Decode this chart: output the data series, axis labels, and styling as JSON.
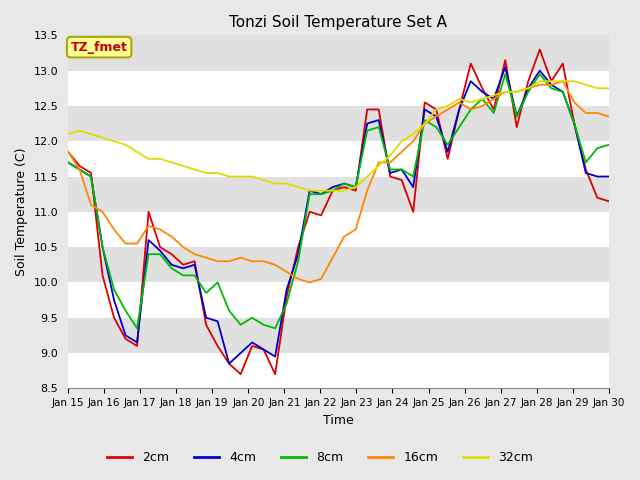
{
  "title": "Tonzi Soil Temperature Set A",
  "xlabel": "Time",
  "ylabel": "Soil Temperature (C)",
  "ylim": [
    8.5,
    13.5
  ],
  "xlim": [
    0,
    15
  ],
  "fig_color": "#e8e8e8",
  "plot_bg_color": "#e0e0e0",
  "grid_color": "#ffffff",
  "colors": {
    "2cm": "#dd0000",
    "4cm": "#0000cc",
    "8cm": "#00bb00",
    "16cm": "#ff8800",
    "32cm": "#dddd00"
  },
  "legend_label": "TZ_fmet",
  "legend_bg": "#ffff99",
  "legend_border": "#aaaa00",
  "x_ticks": [
    "Jan 15",
    "Jan 16",
    "Jan 17",
    "Jan 18",
    "Jan 19",
    "Jan 20",
    "Jan 21",
    "Jan 22",
    "Jan 23",
    "Jan 24",
    "Jan 25",
    "Jan 26",
    "Jan 27",
    "Jan 28",
    "Jan 29",
    "Jan 30"
  ],
  "series_2cm": [
    11.85,
    11.65,
    11.55,
    10.1,
    9.5,
    9.2,
    9.1,
    11.0,
    10.5,
    10.4,
    10.25,
    10.3,
    9.4,
    9.1,
    8.85,
    8.7,
    9.1,
    9.05,
    8.7,
    9.8,
    10.5,
    11.0,
    10.95,
    11.3,
    11.35,
    11.3,
    12.45,
    12.45,
    11.5,
    11.45,
    11.0,
    12.55,
    12.45,
    11.75,
    12.45,
    13.1,
    12.75,
    12.45,
    13.15,
    12.2,
    12.85,
    13.3,
    12.85,
    13.1,
    12.25,
    11.6,
    11.2,
    11.15
  ],
  "series_4cm": [
    11.7,
    11.6,
    11.5,
    10.5,
    9.75,
    9.25,
    9.15,
    10.6,
    10.45,
    10.25,
    10.2,
    10.25,
    9.5,
    9.45,
    8.85,
    9.0,
    9.15,
    9.05,
    8.95,
    9.9,
    10.4,
    11.3,
    11.25,
    11.35,
    11.4,
    11.35,
    12.25,
    12.3,
    11.55,
    11.6,
    11.35,
    12.45,
    12.35,
    11.85,
    12.45,
    12.85,
    12.7,
    12.6,
    13.05,
    12.35,
    12.75,
    13.0,
    12.8,
    12.7,
    12.25,
    11.55,
    11.5,
    11.5
  ],
  "series_8cm": [
    11.7,
    11.6,
    11.5,
    10.5,
    9.9,
    9.6,
    9.35,
    10.4,
    10.4,
    10.2,
    10.1,
    10.1,
    9.85,
    10.0,
    9.6,
    9.4,
    9.5,
    9.4,
    9.35,
    9.7,
    10.3,
    11.25,
    11.25,
    11.3,
    11.4,
    11.35,
    12.15,
    12.2,
    11.6,
    11.6,
    11.5,
    12.3,
    12.2,
    11.95,
    12.2,
    12.45,
    12.6,
    12.4,
    12.95,
    12.35,
    12.7,
    12.95,
    12.75,
    12.7,
    12.25,
    11.7,
    11.9,
    11.95
  ],
  "series_16cm": [
    11.85,
    11.6,
    11.1,
    11.0,
    10.75,
    10.55,
    10.55,
    10.8,
    10.75,
    10.65,
    10.5,
    10.4,
    10.35,
    10.3,
    10.3,
    10.35,
    10.3,
    10.3,
    10.25,
    10.15,
    10.05,
    10.0,
    10.05,
    10.35,
    10.65,
    10.75,
    11.3,
    11.7,
    11.7,
    11.85,
    12.0,
    12.25,
    12.35,
    12.45,
    12.55,
    12.45,
    12.5,
    12.6,
    12.7,
    12.7,
    12.75,
    12.8,
    12.8,
    12.85,
    12.55,
    12.4,
    12.4,
    12.35
  ],
  "series_32cm": [
    12.1,
    12.15,
    12.1,
    12.05,
    12.0,
    11.95,
    11.85,
    11.75,
    11.75,
    11.7,
    11.65,
    11.6,
    11.55,
    11.55,
    11.5,
    11.5,
    11.5,
    11.45,
    11.4,
    11.4,
    11.35,
    11.3,
    11.3,
    11.3,
    11.3,
    11.35,
    11.5,
    11.65,
    11.8,
    12.0,
    12.1,
    12.25,
    12.45,
    12.5,
    12.6,
    12.55,
    12.6,
    12.65,
    12.7,
    12.7,
    12.75,
    12.85,
    12.85,
    12.85,
    12.85,
    12.8,
    12.75,
    12.75
  ],
  "yticks": [
    8.5,
    9.0,
    9.5,
    10.0,
    10.5,
    11.0,
    11.5,
    12.0,
    12.5,
    13.0,
    13.5
  ]
}
